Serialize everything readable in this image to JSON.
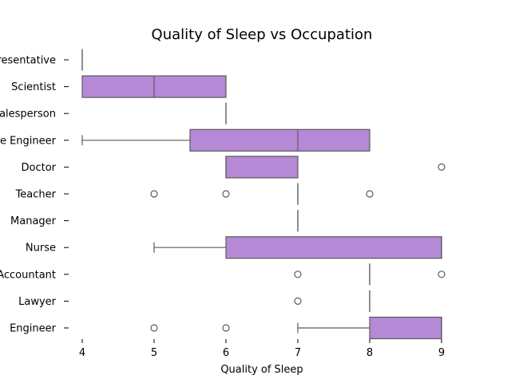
{
  "chart_data": {
    "type": "box",
    "title": "Quality of Sleep vs Occupation",
    "xlabel": "Quality of Sleep",
    "ylabel": "",
    "xlim": [
      4,
      9
    ],
    "xticks": [
      "4",
      "5",
      "6",
      "7",
      "8",
      "9"
    ],
    "grid": false,
    "colors": {
      "box": "#b589d6",
      "line": "#5a5a5a"
    },
    "categories": [
      {
        "label": "Sales Representative",
        "whisker_low": 4,
        "q1": 4,
        "median": 4,
        "q3": 4,
        "whisker_high": 4,
        "outliers": []
      },
      {
        "label": "Scientist",
        "whisker_low": 4,
        "q1": 4,
        "median": 5,
        "q3": 6,
        "whisker_high": 6,
        "outliers": []
      },
      {
        "label": "Salesperson",
        "whisker_low": 6,
        "q1": 6,
        "median": 6,
        "q3": 6,
        "whisker_high": 6,
        "outliers": []
      },
      {
        "label": "Software Engineer",
        "whisker_low": 4,
        "q1": 5.5,
        "median": 7,
        "q3": 8,
        "whisker_high": 8,
        "outliers": []
      },
      {
        "label": "Doctor",
        "whisker_low": 6,
        "q1": 6,
        "median": 6,
        "q3": 7,
        "whisker_high": 7,
        "outliers": [
          9
        ]
      },
      {
        "label": "Teacher",
        "whisker_low": 7,
        "q1": 7,
        "median": 7,
        "q3": 7,
        "whisker_high": 7,
        "outliers": [
          5,
          6,
          8
        ]
      },
      {
        "label": "Manager",
        "whisker_low": 7,
        "q1": 7,
        "median": 7,
        "q3": 7,
        "whisker_high": 7,
        "outliers": []
      },
      {
        "label": "Nurse",
        "whisker_low": 5,
        "q1": 6,
        "median": 9,
        "q3": 9,
        "whisker_high": 9,
        "outliers": []
      },
      {
        "label": "Accountant",
        "whisker_low": 8,
        "q1": 8,
        "median": 8,
        "q3": 8,
        "whisker_high": 8,
        "outliers": [
          7,
          9
        ]
      },
      {
        "label": "Lawyer",
        "whisker_low": 8,
        "q1": 8,
        "median": 8,
        "q3": 8,
        "whisker_high": 8,
        "outliers": [
          7
        ]
      },
      {
        "label": "Engineer",
        "whisker_low": 7,
        "q1": 8,
        "median": 9,
        "q3": 9,
        "whisker_high": 9,
        "outliers": [
          5,
          6
        ]
      }
    ]
  }
}
